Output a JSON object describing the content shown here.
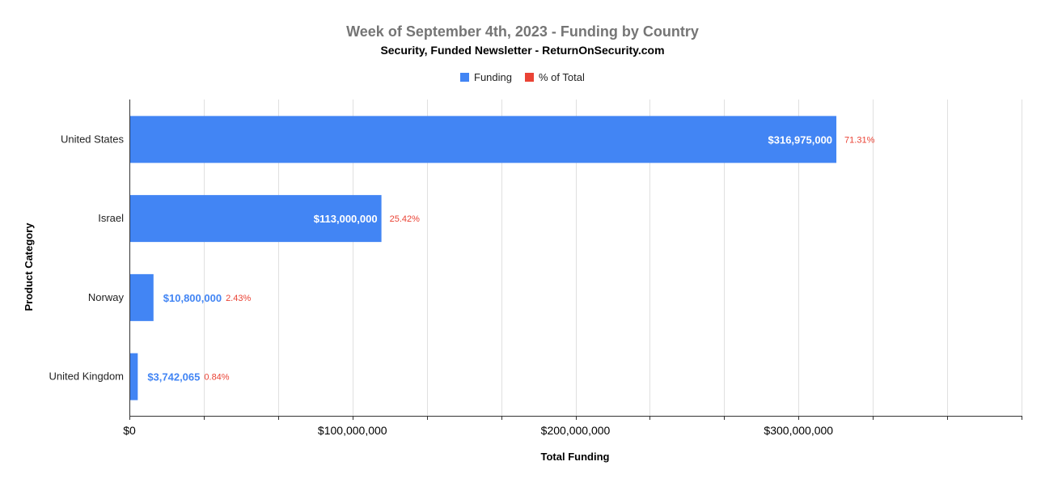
{
  "chart_data": {
    "type": "bar",
    "orientation": "horizontal",
    "title": "Week of September 4th, 2023 - Funding by Country",
    "subtitle": "Security, Funded Newsletter - ReturnOnSecurity.com",
    "xlabel": "Total Funding",
    "ylabel": "Product Category",
    "legend": {
      "placement": "top-center",
      "entries": [
        {
          "label": "Funding",
          "color": "#4285f4"
        },
        {
          "label": "% of Total",
          "color": "#ea4335"
        }
      ]
    },
    "categories": [
      "United States",
      "Israel",
      "Norway",
      "United Kingdom"
    ],
    "series": [
      {
        "name": "Funding",
        "values": [
          316975000,
          113000000,
          10800000,
          3742065
        ],
        "labels": [
          "$316,975,000",
          "$113,000,000",
          "$10,800,000",
          "$3,742,065"
        ]
      },
      {
        "name": "% of Total",
        "values": [
          71.31,
          25.42,
          2.43,
          0.84
        ],
        "labels": [
          "71.31%",
          "25.42%",
          "2.43%",
          "0.84%"
        ]
      }
    ],
    "xlim": [
      0,
      400000000
    ],
    "xticks": [
      0,
      100000000,
      200000000,
      300000000
    ],
    "xtick_labels": [
      "$0",
      "$100,000,000",
      "$200,000,000",
      "$300,000,000"
    ],
    "minor_grid_step": 33333333,
    "grid": true
  }
}
